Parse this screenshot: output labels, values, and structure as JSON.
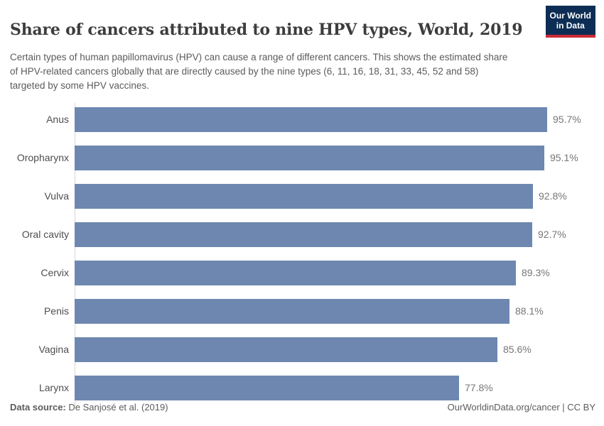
{
  "header": {
    "title": "Share of cancers attributed to nine HPV types, World, 2019",
    "subtitle": "Certain types of human papillomavirus (HPV) can cause a range of different cancers. This shows the estimated share of HPV-related cancers globally that are directly caused by the nine types (6, 11, 16, 18, 31, 33, 45, 52 and 58) targeted by some HPV vaccines.",
    "logo": {
      "line1": "Our World",
      "line2": "in Data"
    }
  },
  "chart_data": {
    "type": "bar",
    "orientation": "horizontal",
    "title": "Share of cancers attributed to nine HPV types, World, 2019",
    "categories": [
      "Anus",
      "Oropharynx",
      "Vulva",
      "Oral cavity",
      "Cervix",
      "Penis",
      "Vagina",
      "Larynx"
    ],
    "values": [
      95.7,
      95.1,
      92.8,
      92.7,
      89.3,
      88.1,
      85.6,
      77.8
    ],
    "value_labels": [
      "95.7%",
      "95.1%",
      "92.8%",
      "92.7%",
      "89.3%",
      "88.1%",
      "85.6%",
      "77.8%"
    ],
    "xlabel": "",
    "ylabel": "",
    "xlim": [
      0,
      100
    ],
    "grid": false,
    "legend": "none",
    "unit": "%"
  },
  "footer": {
    "datasource_label": "Data source:",
    "datasource_value": "De Sanjosé et al. (2019)",
    "credit": "OurWorldinData.org/cancer | CC BY"
  },
  "colors": {
    "bar": "#6e87b1",
    "title_text": "#3d3d3d",
    "body_text": "#5b5b5b",
    "axis_line": "#d5d5d5",
    "logo_bg": "#0d2d54",
    "logo_accent": "#cc2b36"
  }
}
